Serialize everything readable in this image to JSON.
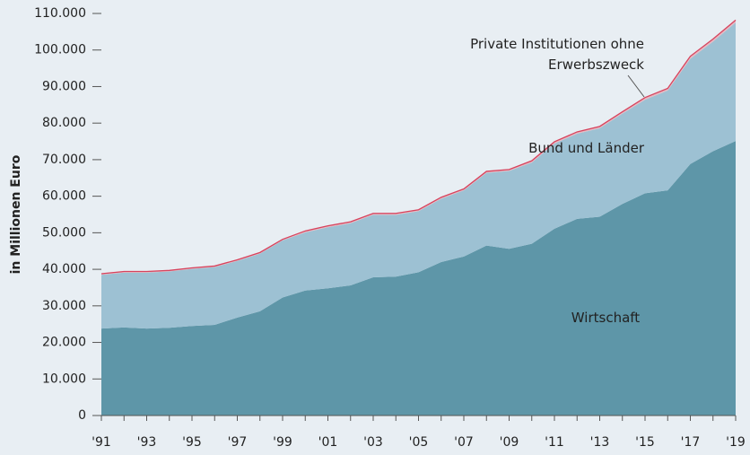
{
  "chart_data": {
    "type": "stacked_area",
    "y_label": "in Millionen Euro",
    "categories": [
      "'91",
      null,
      "'93",
      null,
      "'95",
      null,
      "'97",
      null,
      "'99",
      null,
      "'01",
      null,
      "'03",
      null,
      "'05",
      null,
      "'07",
      null,
      "'09",
      null,
      "'11",
      null,
      "'13",
      null,
      "'15",
      null,
      "'17",
      null,
      "'19"
    ],
    "series": [
      {
        "name": "Wirtschaft",
        "color": "#5e96a8",
        "values": [
          23800,
          24100,
          23800,
          24000,
          24500,
          24800,
          26800,
          28500,
          32300,
          34200,
          34800,
          35600,
          37800,
          38000,
          39200,
          42000,
          43500,
          46500,
          45600,
          47000,
          51100,
          53800,
          54400,
          57900,
          60800,
          61600,
          68800,
          72300,
          75100
        ]
      },
      {
        "name": "Bund und Länder",
        "color": "#9dc1d3",
        "values": [
          14700,
          15000,
          15300,
          15400,
          15600,
          15800,
          15500,
          15800,
          15600,
          15900,
          16700,
          17000,
          17100,
          16900,
          16700,
          17300,
          18100,
          19900,
          21300,
          22200,
          23300,
          23300,
          24200,
          24700,
          25600,
          27300,
          28800,
          30000,
          32400
        ]
      },
      {
        "name": "Private Institutionen ohne Erwerbszweck",
        "color": "#d6435d",
        "values": [
          300,
          300,
          300,
          300,
          300,
          300,
          300,
          300,
          300,
          400,
          400,
          400,
          400,
          400,
          400,
          400,
          400,
          400,
          400,
          500,
          500,
          500,
          500,
          500,
          600,
          600,
          700,
          700,
          700
        ]
      }
    ],
    "ylim": [
      0,
      110000
    ],
    "yticks": [
      0,
      {
        "value": 10000,
        "label": "10.000"
      },
      {
        "value": 20000,
        "label": "20.000"
      },
      {
        "value": 30000,
        "label": "30.000"
      },
      {
        "value": 40000,
        "label": "40.000"
      },
      {
        "value": 50000,
        "label": "50.000"
      },
      {
        "value": 60000,
        "label": "60.000"
      },
      {
        "value": 70000,
        "label": "70.000"
      },
      {
        "value": 80000,
        "label": "80.000"
      },
      {
        "value": 90000,
        "label": "90.000"
      },
      {
        "value": 100000,
        "label": "100.000"
      },
      {
        "value": 110000,
        "label": "110.000"
      }
    ]
  }
}
